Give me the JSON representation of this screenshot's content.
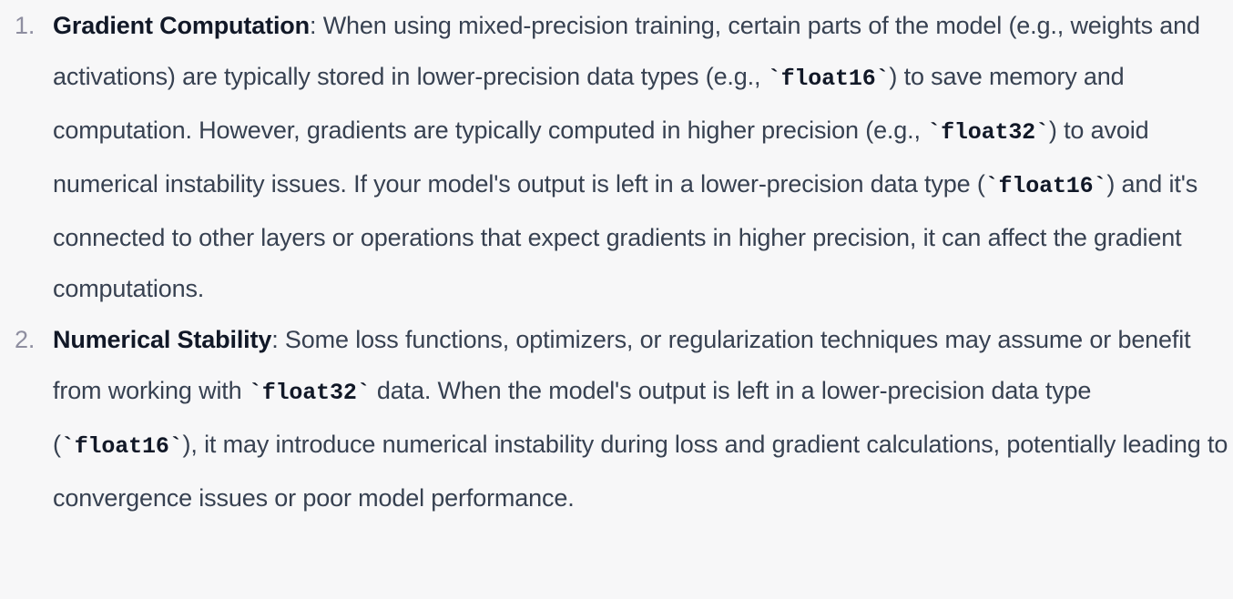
{
  "items": [
    {
      "number": "1.",
      "term": "Gradient Computation",
      "segments": [
        {
          "type": "text",
          "value": ": When using mixed-precision training, certain parts of the model (e.g., weights and activations) are typically stored in lower-precision data types (e.g., "
        },
        {
          "type": "code",
          "value": "float16"
        },
        {
          "type": "text",
          "value": ") to save memory and computation. However, gradients are typically computed in higher precision (e.g., "
        },
        {
          "type": "code",
          "value": "float32"
        },
        {
          "type": "text",
          "value": ") to avoid numerical instability issues. If your model's output is left in a lower-precision data type ("
        },
        {
          "type": "code",
          "value": "float16"
        },
        {
          "type": "text",
          "value": ") and it's connected to other layers or operations that expect gradients in higher precision, it can affect the gradient computations."
        }
      ]
    },
    {
      "number": "2.",
      "term": "Numerical Stability",
      "segments": [
        {
          "type": "text",
          "value": ": Some loss functions, optimizers, or regularization techniques may assume or benefit from working with "
        },
        {
          "type": "code",
          "value": "float32"
        },
        {
          "type": "text",
          "value": " data. When the model's output is left in a lower-precision data type ("
        },
        {
          "type": "code",
          "value": "float16"
        },
        {
          "type": "text",
          "value": "), it may introduce numerical instability during loss and gradient calculations, potentially leading to convergence issues or poor model performance."
        }
      ]
    }
  ]
}
